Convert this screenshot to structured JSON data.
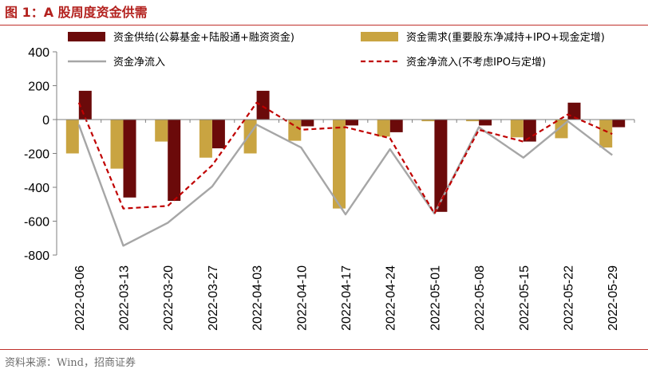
{
  "header": {
    "title": "图 1：A 股周度资金供需"
  },
  "footer": {
    "source": "资料来源：Wind，招商证券"
  },
  "chart_data": {
    "type": "bar",
    "categories": [
      "2022-03-06",
      "2022-03-13",
      "2022-03-20",
      "2022-03-27",
      "2022-04-03",
      "2022-04-10",
      "2022-04-17",
      "2022-04-24",
      "2022-05-01",
      "2022-05-08",
      "2022-05-15",
      "2022-05-22",
      "2022-05-29"
    ],
    "series": [
      {
        "name": "资金供给(公募基金+陆股通+融资资金)",
        "kind": "bar",
        "color": "#6b0a0a",
        "values": [
          170,
          -460,
          -480,
          -170,
          170,
          -40,
          -35,
          -75,
          -545,
          -35,
          -130,
          100,
          -45
        ]
      },
      {
        "name": "资金需求(重要股东净减持+IPO+现金定增)",
        "kind": "bar",
        "color": "#c9a441",
        "values": [
          -200,
          -290,
          -130,
          -225,
          -200,
          -125,
          -525,
          -100,
          -10,
          -10,
          -105,
          -110,
          -165
        ]
      },
      {
        "name": "资金净流入",
        "kind": "line",
        "color": "#a6a6a6",
        "dash": false,
        "values": [
          -30,
          -745,
          -610,
          -395,
          -30,
          -165,
          -560,
          -175,
          -555,
          -45,
          -225,
          -10,
          -210
        ]
      },
      {
        "name": "资金净流入(不考虑IPO与定增)",
        "kind": "line",
        "color": "#c00000",
        "dash": true,
        "values": [
          100,
          -525,
          -510,
          -270,
          100,
          -60,
          -45,
          -110,
          -555,
          -60,
          -130,
          30,
          -85
        ]
      }
    ],
    "ylim": [
      -800,
      400
    ],
    "yticks": [
      400,
      200,
      0,
      -200,
      -400,
      -600,
      -800
    ],
    "ytick_labels": [
      "400",
      "200",
      "0",
      "-200",
      "-400",
      "-600",
      "-800"
    ],
    "xlabel": "",
    "ylabel": "",
    "legend_position": "top",
    "grid": false
  }
}
